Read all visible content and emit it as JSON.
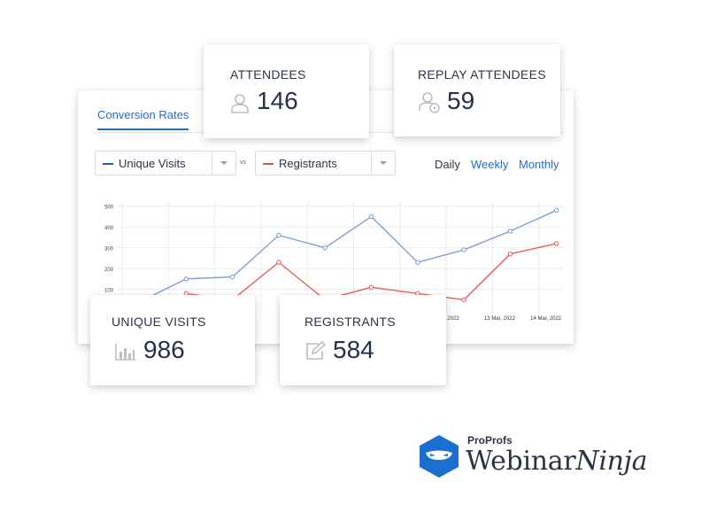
{
  "tab": {
    "label": "Conversion Rates"
  },
  "selects": {
    "primary": {
      "label": "Unique Visits",
      "color": "#1a5fb4"
    },
    "vs_label": "vs",
    "secondary": {
      "label": "Registrants",
      "color": "#e24b4b"
    }
  },
  "periods": {
    "daily": "Daily",
    "weekly": "Weekly",
    "monthly": "Monthly"
  },
  "stats": {
    "attendees": {
      "title": "ATTENDEES",
      "value": "146",
      "icon": "user-icon"
    },
    "replay": {
      "title": "REPLAY ATTENDEES",
      "value": "59",
      "icon": "user-replay-icon"
    },
    "visits": {
      "title": "UNIQUE VISITS",
      "value": "986",
      "icon": "bar-chart-icon"
    },
    "registrants": {
      "title": "REGISTRANTS",
      "value": "584",
      "icon": "edit-icon"
    }
  },
  "logo": {
    "brand": "ProProfs",
    "name_plain": "Webinar",
    "name_italic": "Ninja",
    "icon": "ninja-logo-icon"
  },
  "chart_data": {
    "type": "line",
    "y_ticks": [
      "500",
      "400",
      "300",
      "200",
      "100"
    ],
    "ylim": [
      0,
      520
    ],
    "x_labels_visible": [
      "r, 2022",
      "2022",
      "13 Mar, 2022",
      "14 Mar, 2022"
    ],
    "series": [
      {
        "name": "Unique Visits",
        "color": "#7a98cf",
        "values": [
          40,
          150,
          160,
          360,
          300,
          450,
          230,
          290,
          380,
          480
        ]
      },
      {
        "name": "Registrants",
        "color": "#e5574f",
        "values": [
          null,
          80,
          50,
          230,
          50,
          110,
          80,
          50,
          270,
          320
        ]
      }
    ]
  },
  "colors": {
    "accent": "#1a6fd1",
    "logo_blue": "#1a6fd1"
  }
}
